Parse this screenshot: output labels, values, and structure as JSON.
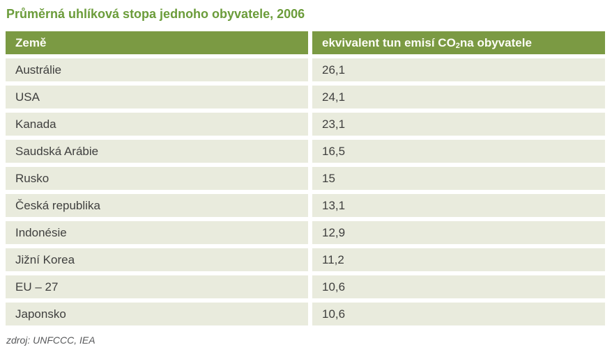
{
  "title": "Průměrná uhlíková stopa jednoho obyvatele, 2006",
  "table": {
    "header": {
      "col1": "Země",
      "col2_prefix": "ekvivalent tun emisí CO",
      "col2_sub": "2",
      "col2_suffix": " na obyvatele"
    },
    "rows": [
      {
        "country": "Austrálie",
        "value": "26,1"
      },
      {
        "country": "USA",
        "value": "24,1"
      },
      {
        "country": "Kanada",
        "value": "23,1"
      },
      {
        "country": "Saudská Arábie",
        "value": "16,5"
      },
      {
        "country": "Rusko",
        "value": "15"
      },
      {
        "country": "Česká republika",
        "value": "13,1"
      },
      {
        "country": "Indonésie",
        "value": "12,9"
      },
      {
        "country": "Jižní Korea",
        "value": "11,2"
      },
      {
        "country": "EU – 27",
        "value": "10,6"
      },
      {
        "country": "Japonsko",
        "value": "10,6"
      }
    ]
  },
  "source": "zdroj: UNFCCC, IEA",
  "colors": {
    "title_green": "#6b9c3a",
    "header_green": "#7b9a43",
    "header_text": "#fdfdf6",
    "row_bg": "#e9ebdd",
    "row_text": "#3f3f3e",
    "source_text": "#57585a",
    "page_bg": "#ffffff"
  },
  "chart_data": {
    "type": "table",
    "title": "Průměrná uhlíková stopa jednoho obyvatele, 2006",
    "columns": [
      "Země",
      "ekvivalent tun emisí CO₂ na obyvatele"
    ],
    "rows": [
      [
        "Austrálie",
        26.1
      ],
      [
        "USA",
        24.1
      ],
      [
        "Kanada",
        23.1
      ],
      [
        "Saudská Arábie",
        16.5
      ],
      [
        "Rusko",
        15
      ],
      [
        "Česká republika",
        13.1
      ],
      [
        "Indonésie",
        12.9
      ],
      [
        "Jižní Korea",
        11.2
      ],
      [
        "EU – 27",
        10.6
      ],
      [
        "Japonsko",
        10.6
      ]
    ],
    "source": "zdroj: UNFCCC, IEA",
    "layout": {
      "header_fill": "#7b9a43",
      "row_fill": "#e9ebdd",
      "grid": "white-gaps"
    }
  }
}
